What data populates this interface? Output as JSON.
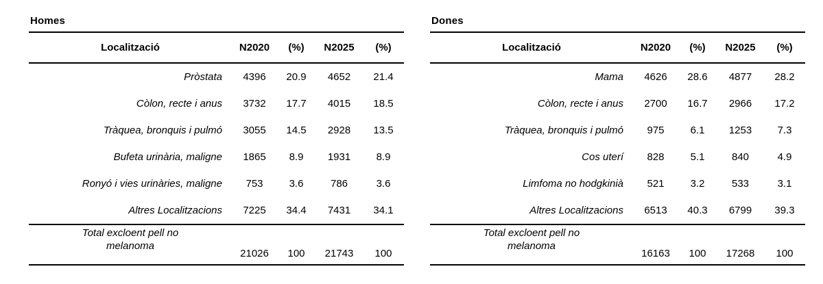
{
  "colors": {
    "text": "#000000",
    "rule": "#000000",
    "background": "#ffffff"
  },
  "tables": [
    {
      "title": "Homes",
      "columns": [
        "Localització",
        "N2020",
        "(%)",
        "N2025",
        "(%)"
      ],
      "rows": [
        {
          "loc": "Pròstata",
          "n2020": "4396",
          "p2020": "20.9",
          "n2025": "4652",
          "p2025": "21.4"
        },
        {
          "loc": "Còlon, recte i anus",
          "n2020": "3732",
          "p2020": "17.7",
          "n2025": "4015",
          "p2025": "18.5"
        },
        {
          "loc": "Tràquea, bronquis i pulmó",
          "n2020": "3055",
          "p2020": "14.5",
          "n2025": "2928",
          "p2025": "13.5"
        },
        {
          "loc": "Bufeta urinària, maligne",
          "n2020": "1865",
          "p2020": "8.9",
          "n2025": "1931",
          "p2025": "8.9"
        },
        {
          "loc": "Ronyó i vies urinàries, maligne",
          "n2020": "753",
          "p2020": "3.6",
          "n2025": "786",
          "p2025": "3.6"
        },
        {
          "loc": "Altres Localitzacions",
          "n2020": "7225",
          "p2020": "34.4",
          "n2025": "7431",
          "p2025": "34.1"
        }
      ],
      "total": {
        "loc": "Total excloent pell no melanoma",
        "n2020": "21026",
        "p2020": "100",
        "n2025": "21743",
        "p2025": "100"
      }
    },
    {
      "title": "Dones",
      "columns": [
        "Localització",
        "N2020",
        "(%)",
        "N2025",
        "(%)"
      ],
      "rows": [
        {
          "loc": "Mama",
          "n2020": "4626",
          "p2020": "28.6",
          "n2025": "4877",
          "p2025": "28.2"
        },
        {
          "loc": "Còlon, recte i anus",
          "n2020": "2700",
          "p2020": "16.7",
          "n2025": "2966",
          "p2025": "17.2"
        },
        {
          "loc": "Tràquea, bronquis i pulmó",
          "n2020": "975",
          "p2020": "6.1",
          "n2025": "1253",
          "p2025": "7.3"
        },
        {
          "loc": "Cos uterí",
          "n2020": "828",
          "p2020": "5.1",
          "n2025": "840",
          "p2025": "4.9"
        },
        {
          "loc": "Limfoma no hodgkinià",
          "n2020": "521",
          "p2020": "3.2",
          "n2025": "533",
          "p2025": "3.1"
        },
        {
          "loc": "Altres Localitzacions",
          "n2020": "6513",
          "p2020": "40.3",
          "n2025": "6799",
          "p2025": "39.3"
        }
      ],
      "total": {
        "loc": "Total excloent pell no melanoma",
        "n2020": "16163",
        "p2020": "100",
        "n2025": "17268",
        "p2025": "100"
      }
    }
  ]
}
